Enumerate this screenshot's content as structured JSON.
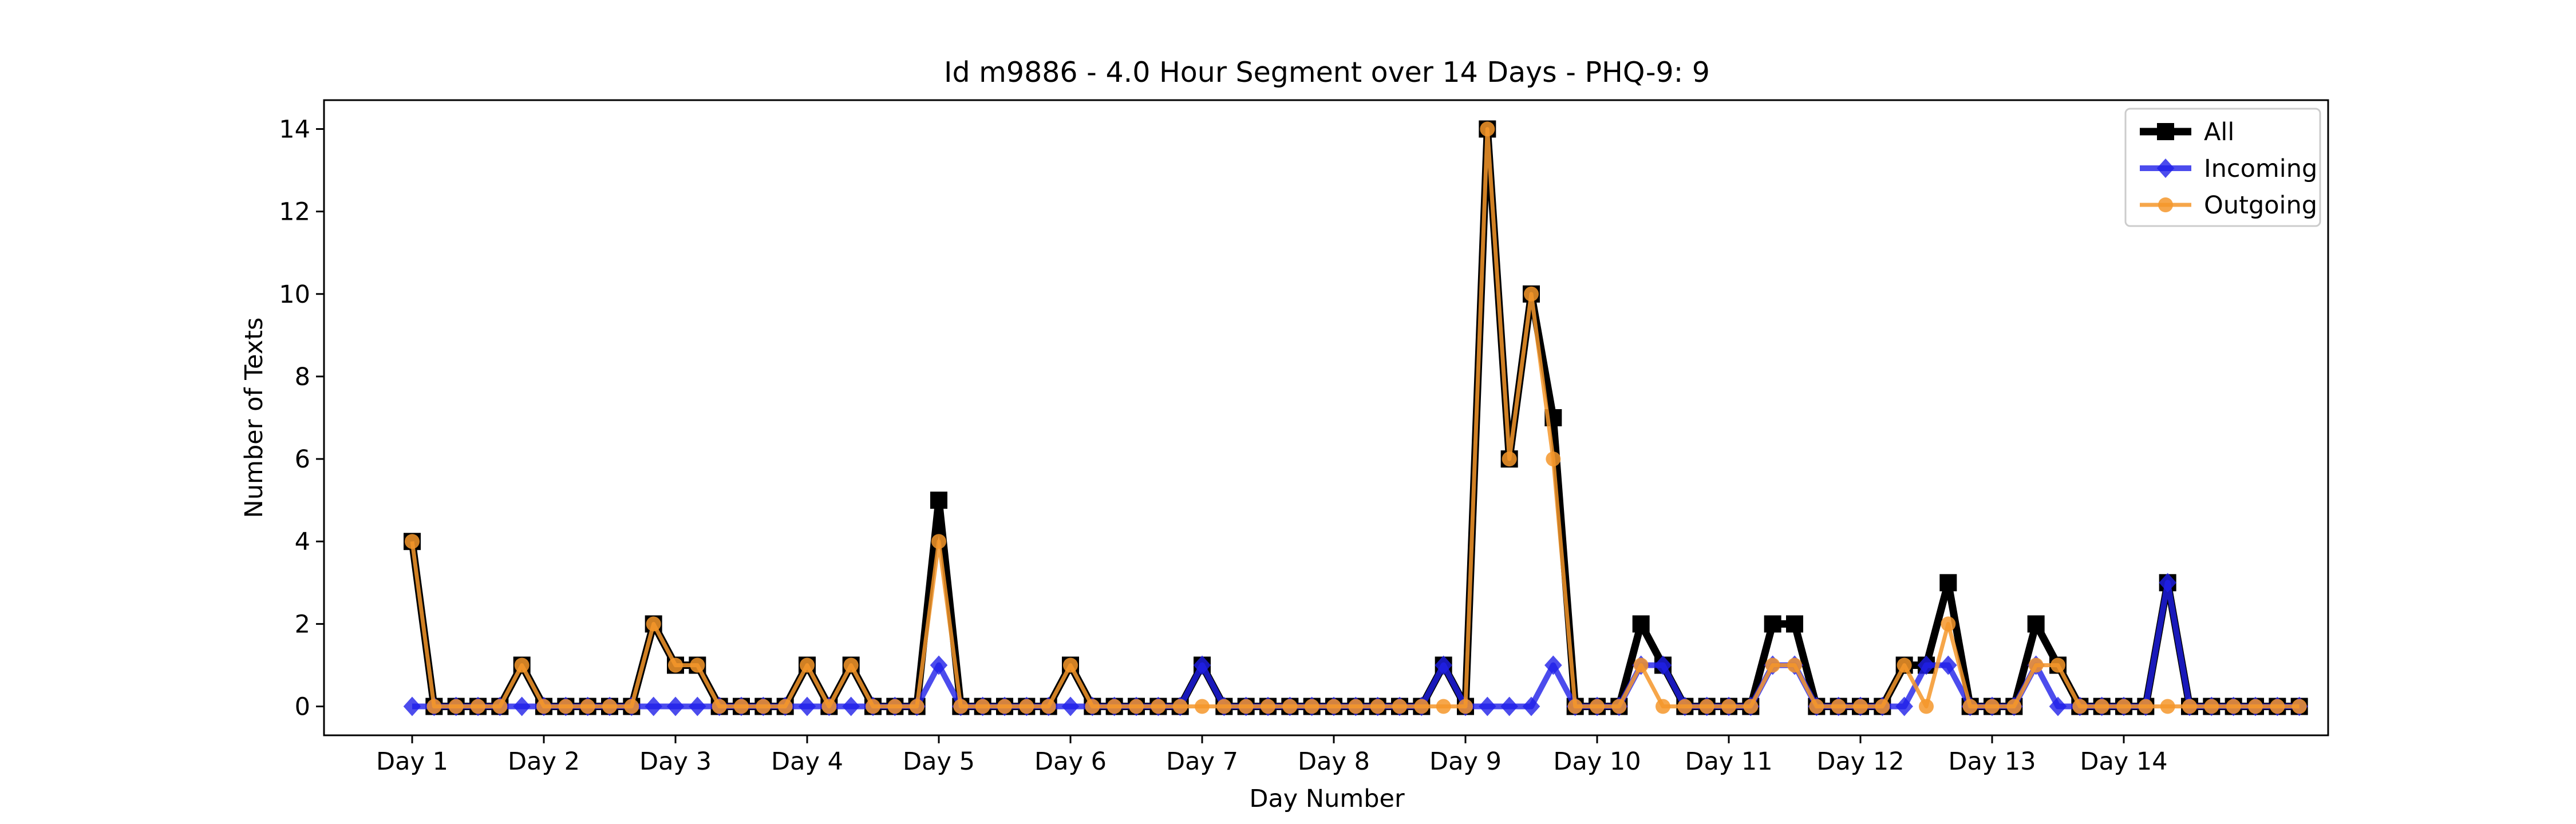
{
  "chart_data": {
    "type": "line",
    "title": "Id m9886 - 4.0 Hour Segment over 14 Days - PHQ-9: 9",
    "xlabel": "Day Number",
    "ylabel": "Number of Texts",
    "ylim": [
      -0.7,
      14.7
    ],
    "yticks": [
      0,
      2,
      4,
      6,
      8,
      10,
      12,
      14
    ],
    "xticks": [
      "Day 1",
      "Day 2",
      "Day 3",
      "Day 4",
      "Day 5",
      "Day 6",
      "Day 7",
      "Day 8",
      "Day 9",
      "Day 10",
      "Day 11",
      "Day 12",
      "Day 13",
      "Day 14"
    ],
    "segments_per_day": 6,
    "legend_position": "top-right",
    "series": [
      {
        "name": "All",
        "color": "#000000",
        "marker": "square",
        "values": [
          4,
          0,
          0,
          0,
          0,
          1,
          0,
          0,
          0,
          0,
          0,
          2,
          1,
          1,
          0,
          0,
          0,
          0,
          1,
          0,
          1,
          0,
          0,
          0,
          5,
          0,
          0,
          0,
          0,
          0,
          1,
          0,
          0,
          0,
          0,
          0,
          1,
          0,
          0,
          0,
          0,
          0,
          0,
          0,
          0,
          0,
          0,
          1,
          0,
          14,
          6,
          10,
          7,
          0,
          0,
          0,
          2,
          1,
          0,
          0,
          0,
          0,
          2,
          2,
          0,
          0,
          0,
          0,
          1,
          1,
          3,
          0,
          0,
          0,
          2,
          1,
          0,
          0,
          0,
          0,
          3,
          0,
          0,
          0,
          0,
          0,
          0
        ]
      },
      {
        "name": "Incoming",
        "color": "#1f1fe8",
        "marker": "diamond",
        "values": [
          0,
          0,
          0,
          0,
          0,
          0,
          0,
          0,
          0,
          0,
          0,
          0,
          0,
          0,
          0,
          0,
          0,
          0,
          0,
          0,
          0,
          0,
          0,
          0,
          1,
          0,
          0,
          0,
          0,
          0,
          0,
          0,
          0,
          0,
          0,
          0,
          1,
          0,
          0,
          0,
          0,
          0,
          0,
          0,
          0,
          0,
          0,
          1,
          0,
          0,
          0,
          0,
          1,
          0,
          0,
          0,
          1,
          1,
          0,
          0,
          0,
          0,
          1,
          1,
          0,
          0,
          0,
          0,
          0,
          1,
          1,
          0,
          0,
          0,
          1,
          0,
          0,
          0,
          0,
          0,
          3,
          0,
          0,
          0,
          0,
          0,
          0
        ]
      },
      {
        "name": "Outgoing",
        "color": "#f5962a",
        "marker": "circle",
        "values": [
          4,
          0,
          0,
          0,
          0,
          1,
          0,
          0,
          0,
          0,
          0,
          2,
          1,
          1,
          0,
          0,
          0,
          0,
          1,
          0,
          1,
          0,
          0,
          0,
          4,
          0,
          0,
          0,
          0,
          0,
          1,
          0,
          0,
          0,
          0,
          0,
          0,
          0,
          0,
          0,
          0,
          0,
          0,
          0,
          0,
          0,
          0,
          0,
          0,
          14,
          6,
          10,
          6,
          0,
          0,
          0,
          1,
          0,
          0,
          0,
          0,
          0,
          1,
          1,
          0,
          0,
          0,
          0,
          1,
          0,
          2,
          0,
          0,
          0,
          1,
          1,
          0,
          0,
          0,
          0,
          0,
          0,
          0,
          0,
          0,
          0,
          0
        ]
      }
    ]
  }
}
